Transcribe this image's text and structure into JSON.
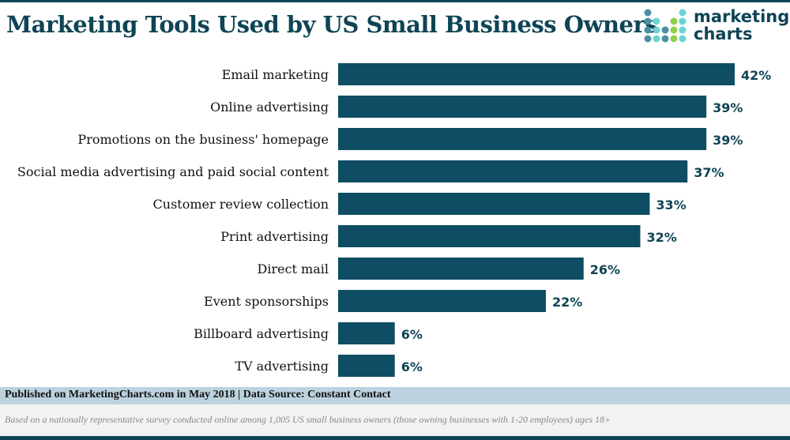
{
  "title": "Marketing Tools Used by US Small Business Owners",
  "logo": {
    "line1": "marketing",
    "line2": "charts",
    "colors": [
      "#4a8fa6",
      "#6dd3d3",
      "#8fd14f"
    ]
  },
  "chart_data": {
    "type": "bar",
    "orientation": "horizontal",
    "categories": [
      "Email marketing",
      "Online advertising",
      "Promotions on the business' homepage",
      "Social media advertising and paid social content",
      "Customer review collection",
      "Print advertising",
      "Direct mail",
      "Event sponsorships",
      "Billboard advertising",
      "TV advertising"
    ],
    "values": [
      42,
      39,
      39,
      37,
      33,
      32,
      26,
      22,
      6,
      6
    ],
    "data_labels": [
      "42%",
      "39%",
      "39%",
      "37%",
      "33%",
      "32%",
      "26%",
      "22%",
      "6%",
      "6%"
    ],
    "unit": "%",
    "xlim": [
      0,
      42
    ],
    "grid": false,
    "bar_color": "#0e4d63"
  },
  "footer": {
    "source": "Published on MarketingCharts.com in May 2018 | Data Source: Constant Contact",
    "note": "Based on a nationally representative survey conducted online among 1,005 US small business owners (those owning businesses with 1-20 employees) ages 18+"
  }
}
